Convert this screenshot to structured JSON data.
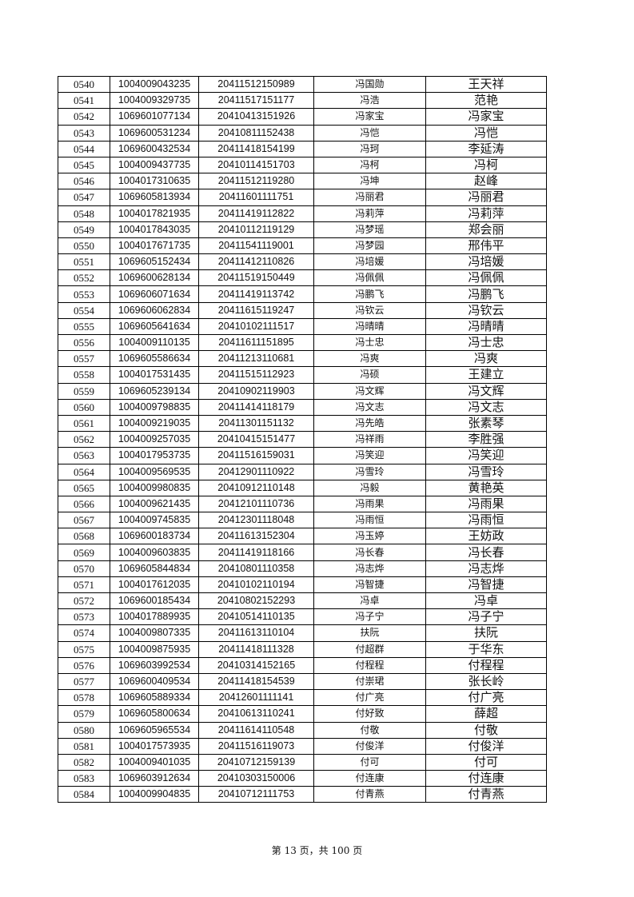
{
  "rows": [
    [
      "0540",
      "1004009043235",
      "20411512150989",
      "冯国勋",
      "王天祥"
    ],
    [
      "0541",
      "1004009329735",
      "20411517151177",
      "冯浩",
      "范艳"
    ],
    [
      "0542",
      "1069601077134",
      "20410413151926",
      "冯家宝",
      "冯家宝"
    ],
    [
      "0543",
      "1069600531234",
      "20410811152438",
      "冯恺",
      "冯恺"
    ],
    [
      "0544",
      "1069600432534",
      "20411418154199",
      "冯珂",
      "李延涛"
    ],
    [
      "0545",
      "1004009437735",
      "20410114151703",
      "冯柯",
      "冯柯"
    ],
    [
      "0546",
      "1004017310635",
      "20411512119280",
      "冯坤",
      "赵峰"
    ],
    [
      "0547",
      "1069605813934",
      "20411601111751",
      "冯丽君",
      "冯丽君"
    ],
    [
      "0548",
      "1004017821935",
      "20411419112822",
      "冯莉萍",
      "冯莉萍"
    ],
    [
      "0549",
      "1004017843035",
      "20410112119129",
      "冯梦瑶",
      "郑会丽"
    ],
    [
      "0550",
      "1004017671735",
      "20411541119001",
      "冯梦园",
      "邢伟平"
    ],
    [
      "0551",
      "1069605152434",
      "20411412110826",
      "冯培媛",
      "冯培媛"
    ],
    [
      "0552",
      "1069600628134",
      "20411519150449",
      "冯佩佩",
      "冯佩佩"
    ],
    [
      "0553",
      "1069606071634",
      "20411419113742",
      "冯鹏飞",
      "冯鹏飞"
    ],
    [
      "0554",
      "1069606062834",
      "20411615119247",
      "冯钦云",
      "冯钦云"
    ],
    [
      "0555",
      "1069605641634",
      "20410102111517",
      "冯晴晴",
      "冯晴晴"
    ],
    [
      "0556",
      "1004009110135",
      "20411611151895",
      "冯士忠",
      "冯士忠"
    ],
    [
      "0557",
      "1069605586634",
      "20411213110681",
      "冯爽",
      "冯爽"
    ],
    [
      "0558",
      "1004017531435",
      "20411515112923",
      "冯硕",
      "王建立"
    ],
    [
      "0559",
      "1069605239134",
      "20410902119903",
      "冯文辉",
      "冯文辉"
    ],
    [
      "0560",
      "1004009798835",
      "20411414118179",
      "冯文志",
      "冯文志"
    ],
    [
      "0561",
      "1004009219035",
      "20411301151132",
      "冯先皓",
      "张素琴"
    ],
    [
      "0562",
      "1004009257035",
      "20410415151477",
      "冯祥雨",
      "李胜强"
    ],
    [
      "0563",
      "1004017953735",
      "20411516159031",
      "冯笑迎",
      "冯笑迎"
    ],
    [
      "0564",
      "1004009569535",
      "20412901110922",
      "冯雪玲",
      "冯雪玲"
    ],
    [
      "0565",
      "1004009980835",
      "20410912110148",
      "冯毅",
      "黄艳英"
    ],
    [
      "0566",
      "1004009621435",
      "20412101110736",
      "冯雨果",
      "冯雨果"
    ],
    [
      "0567",
      "1004009745835",
      "20412301118048",
      "冯雨恒",
      "冯雨恒"
    ],
    [
      "0568",
      "1069600183734",
      "20411613152304",
      "冯玉婷",
      "王妨政"
    ],
    [
      "0569",
      "1004009603835",
      "20411419118166",
      "冯长春",
      "冯长春"
    ],
    [
      "0570",
      "1069605844834",
      "20410801110358",
      "冯志烨",
      "冯志烨"
    ],
    [
      "0571",
      "1004017612035",
      "20410102110194",
      "冯智捷",
      "冯智捷"
    ],
    [
      "0572",
      "1069600185434",
      "20410802152293",
      "冯卓",
      "冯卓"
    ],
    [
      "0573",
      "1004017889935",
      "20410514110135",
      "冯子宁",
      "冯子宁"
    ],
    [
      "0574",
      "1004009807335",
      "20411613110104",
      "扶阮",
      "扶阮"
    ],
    [
      "0575",
      "1004009875935",
      "20411418111328",
      "付超群",
      "于华东"
    ],
    [
      "0576",
      "1069603992534",
      "20410314152165",
      "付程程",
      "付程程"
    ],
    [
      "0577",
      "1069600409534",
      "20411418154539",
      "付崇珺",
      "张长岭"
    ],
    [
      "0578",
      "1069605889334",
      "20412601111141",
      "付广亮",
      "付广亮"
    ],
    [
      "0579",
      "1069605800634",
      "20410613110241",
      "付好致",
      "薛超"
    ],
    [
      "0580",
      "1069605965534",
      "20411614110548",
      "付敬",
      "付敬"
    ],
    [
      "0581",
      "1004017573935",
      "20411516119073",
      "付俊洋",
      "付俊洋"
    ],
    [
      "0582",
      "1004009401035",
      "20410712159139",
      "付可",
      "付可"
    ],
    [
      "0583",
      "1069603912634",
      "20410303150006",
      "付连康",
      "付连康"
    ],
    [
      "0584",
      "1004009904835",
      "20410712111753",
      "付青燕",
      "付青燕"
    ]
  ],
  "footer": "第 13 页，共 100 页"
}
